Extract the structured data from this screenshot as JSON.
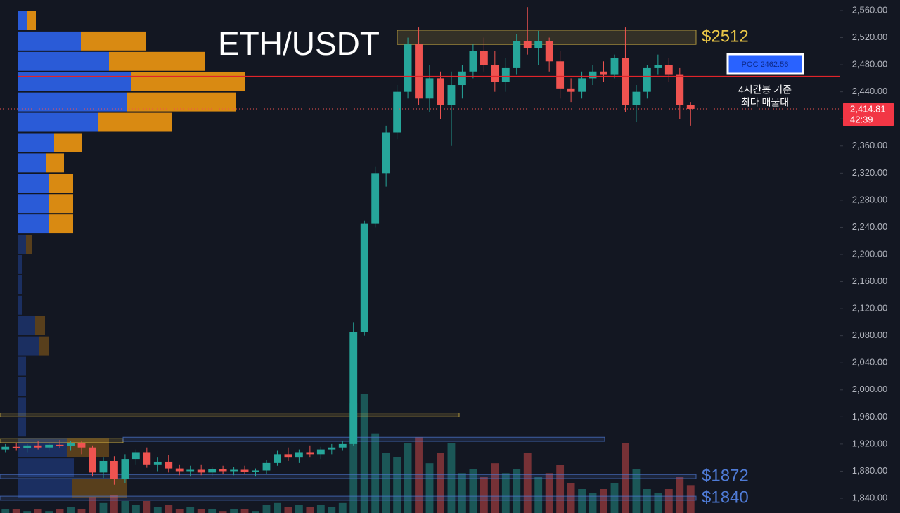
{
  "chart_data": {
    "type": "candlestick",
    "title": "ETH/USDT",
    "ylim": [
      1840,
      2560
    ],
    "yticks": [
      {
        "value": 1840,
        "label": "1,840.00"
      },
      {
        "value": 1880,
        "label": "1,880.00"
      },
      {
        "value": 1920,
        "label": "1,920.00"
      },
      {
        "value": 1960,
        "label": "1,960.00"
      },
      {
        "value": 2000,
        "label": "2,000.00"
      },
      {
        "value": 2040,
        "label": "2,040.00"
      },
      {
        "value": 2080,
        "label": "2,080.00"
      },
      {
        "value": 2120,
        "label": "2,120.00"
      },
      {
        "value": 2160,
        "label": "2,160.00"
      },
      {
        "value": 2200,
        "label": "2,200.00"
      },
      {
        "value": 2240,
        "label": "2,240.00"
      },
      {
        "value": 2280,
        "label": "2,280.00"
      },
      {
        "value": 2320,
        "label": "2,320.00"
      },
      {
        "value": 2360,
        "label": "2,360.00"
      },
      {
        "value": 2400,
        "label": "2,400.00"
      },
      {
        "value": 2440,
        "label": "2,440.00"
      },
      {
        "value": 2480,
        "label": "2,480.00"
      },
      {
        "value": 2520,
        "label": "2,520.00"
      },
      {
        "value": 2560,
        "label": "2,560.00"
      }
    ],
    "up_color": "#26a69a",
    "down_color": "#ef5350",
    "ohlc": [
      [
        1912,
        1920,
        1908,
        1916
      ],
      [
        1916,
        1922,
        1910,
        1914
      ],
      [
        1914,
        1920,
        1908,
        1918
      ],
      [
        1918,
        1924,
        1912,
        1915
      ],
      [
        1915,
        1921,
        1910,
        1919
      ],
      [
        1919,
        1926,
        1914,
        1917
      ],
      [
        1917,
        1925,
        1910,
        1921
      ],
      [
        1921,
        1924,
        1905,
        1915
      ],
      [
        1915,
        1918,
        1872,
        1878
      ],
      [
        1878,
        1900,
        1870,
        1895
      ],
      [
        1895,
        1902,
        1860,
        1868
      ],
      [
        1868,
        1905,
        1862,
        1898
      ],
      [
        1898,
        1912,
        1890,
        1908
      ],
      [
        1908,
        1915,
        1885,
        1890
      ],
      [
        1890,
        1900,
        1880,
        1894
      ],
      [
        1894,
        1904,
        1878,
        1884
      ],
      [
        1884,
        1890,
        1874,
        1880
      ],
      [
        1880,
        1888,
        1872,
        1882
      ],
      [
        1882,
        1890,
        1874,
        1878
      ],
      [
        1878,
        1886,
        1872,
        1883
      ],
      [
        1883,
        1888,
        1876,
        1880
      ],
      [
        1880,
        1886,
        1874,
        1882
      ],
      [
        1882,
        1888,
        1876,
        1879
      ],
      [
        1879,
        1884,
        1872,
        1881
      ],
      [
        1881,
        1896,
        1876,
        1892
      ],
      [
        1892,
        1910,
        1888,
        1905
      ],
      [
        1905,
        1915,
        1895,
        1900
      ],
      [
        1900,
        1912,
        1892,
        1908
      ],
      [
        1908,
        1918,
        1900,
        1905
      ],
      [
        1905,
        1916,
        1898,
        1912
      ],
      [
        1912,
        1920,
        1905,
        1915
      ],
      [
        1915,
        1925,
        1910,
        1920
      ],
      [
        1920,
        2100,
        1918,
        2085
      ],
      [
        2085,
        2250,
        2080,
        2245
      ],
      [
        2245,
        2330,
        2240,
        2320
      ],
      [
        2320,
        2390,
        2300,
        2380
      ],
      [
        2380,
        2450,
        2370,
        2440
      ],
      [
        2440,
        2520,
        2430,
        2510
      ],
      [
        2510,
        2535,
        2420,
        2430
      ],
      [
        2430,
        2480,
        2410,
        2460
      ],
      [
        2460,
        2470,
        2400,
        2420
      ],
      [
        2420,
        2470,
        2360,
        2450
      ],
      [
        2450,
        2480,
        2430,
        2470
      ],
      [
        2470,
        2510,
        2460,
        2500
      ],
      [
        2500,
        2520,
        2470,
        2480
      ],
      [
        2480,
        2500,
        2440,
        2455
      ],
      [
        2455,
        2490,
        2440,
        2475
      ],
      [
        2475,
        2525,
        2465,
        2515
      ],
      [
        2515,
        2565,
        2495,
        2505
      ],
      [
        2505,
        2530,
        2480,
        2515
      ],
      [
        2515,
        2520,
        2470,
        2485
      ],
      [
        2485,
        2500,
        2430,
        2445
      ],
      [
        2445,
        2460,
        2425,
        2440
      ],
      [
        2440,
        2470,
        2430,
        2460
      ],
      [
        2460,
        2480,
        2450,
        2470
      ],
      [
        2470,
        2485,
        2455,
        2465
      ],
      [
        2465,
        2495,
        2460,
        2490
      ],
      [
        2490,
        2535,
        2410,
        2420
      ],
      [
        2420,
        2450,
        2395,
        2440
      ],
      [
        2440,
        2480,
        2430,
        2475
      ],
      [
        2475,
        2495,
        2465,
        2480
      ],
      [
        2480,
        2490,
        2455,
        2465
      ],
      [
        2465,
        2475,
        2400,
        2420
      ],
      [
        2420,
        2425,
        2390,
        2414.81
      ]
    ],
    "volumes": [
      2,
      2,
      1,
      2,
      1,
      2,
      3,
      2,
      8,
      5,
      9,
      6,
      4,
      6,
      3,
      4,
      2,
      3,
      2,
      2,
      1,
      2,
      2,
      1,
      4,
      5,
      3,
      4,
      3,
      4,
      3,
      5,
      55,
      60,
      40,
      30,
      28,
      35,
      38,
      25,
      30,
      35,
      20,
      22,
      18,
      25,
      20,
      22,
      30,
      18,
      20,
      24,
      15,
      12,
      10,
      12,
      15,
      35,
      22,
      12,
      10,
      12,
      18,
      14
    ],
    "volume_profile": {
      "levels": [
        2545,
        2515,
        2485,
        2455,
        2425,
        2395,
        2365,
        2335,
        2305,
        2275,
        2245,
        2215,
        2185,
        2155,
        2125,
        2095,
        2065,
        2035,
        2005,
        1975,
        1945,
        1915,
        1885,
        1855
      ],
      "buy": [
        14,
        90,
        130,
        162,
        155,
        115,
        52,
        40,
        45,
        45,
        45,
        12,
        6,
        6,
        6,
        25,
        30,
        12,
        12,
        12,
        12,
        70,
        80,
        78
      ],
      "sell": [
        12,
        92,
        136,
        162,
        156,
        105,
        40,
        26,
        34,
        34,
        34,
        8,
        0,
        0,
        0,
        14,
        15,
        0,
        0,
        0,
        0,
        60,
        0,
        78
      ],
      "buy_color": "#2a5bd7",
      "sell_color": "#d98a12",
      "value_area_low": 2230
    },
    "zones": [
      {
        "bottom": 2510,
        "top": 2531,
        "x0": 565,
        "x1": 990,
        "color": "#e8c547",
        "label": "$2512"
      },
      {
        "bottom": 1960,
        "top": 1966,
        "x0": 0,
        "x1": 653,
        "color": "#e8c547"
      },
      {
        "bottom": 1922,
        "top": 1928,
        "x0": 0,
        "x1": 175,
        "color": "#e8c547"
      },
      {
        "bottom": 1924,
        "top": 1930,
        "x0": 175,
        "x1": 860,
        "color": "#4f7bd6"
      },
      {
        "bottom": 1869,
        "top": 1875,
        "x0": 0,
        "x1": 990,
        "color": "#4f7bd6",
        "label": "$1872"
      },
      {
        "bottom": 1837,
        "top": 1843,
        "x0": 0,
        "x1": 990,
        "color": "#4f7bd6",
        "label": "$1840"
      }
    ],
    "poc": {
      "value": 2462.56,
      "label": "POC  2462.56"
    },
    "last_price": {
      "value": 2414.81,
      "label": "2,414.81",
      "countdown": "42:39"
    },
    "annotation": [
      "4시간봉 기준",
      "최다 매물대"
    ]
  }
}
